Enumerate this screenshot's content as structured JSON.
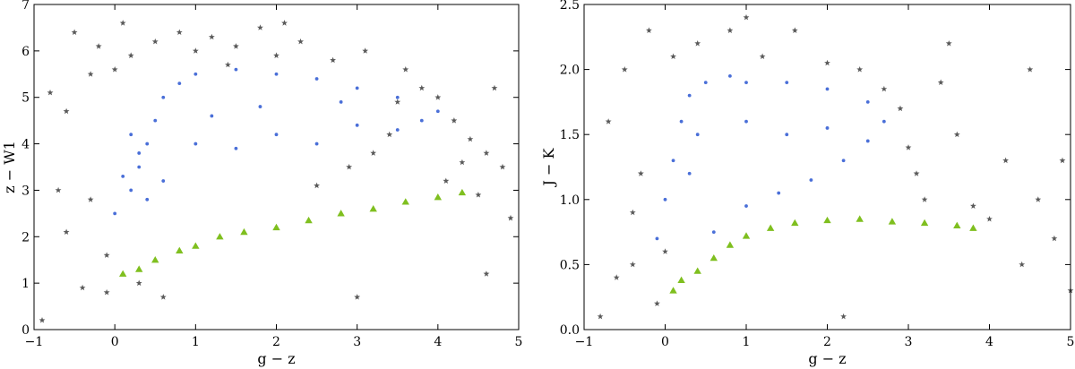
{
  "colors": {
    "galaxy": "#4a6fd8",
    "galaxy_core": "#3a3a9a",
    "star": "#5a5a5a",
    "quasar": "#7fbf1f",
    "quasar_core": "#3f6a1f"
  },
  "chart_data": [
    {
      "type": "scatter",
      "title": "",
      "xlabel": "g − z",
      "ylabel": "z − W1",
      "xlim": [
        -1,
        5
      ],
      "ylim": [
        0,
        7
      ],
      "xticks": [
        -1,
        0,
        1,
        2,
        3,
        4,
        5
      ],
      "yticks": [
        0,
        1,
        2,
        3,
        4,
        5,
        6,
        7
      ],
      "xtick_labels": [
        "−1",
        "0",
        "1",
        "2",
        "3",
        "4",
        "5"
      ],
      "ytick_labels": [
        "0",
        "1",
        "2",
        "3",
        "4",
        "5",
        "6",
        "7"
      ],
      "grid": false,
      "legend": "none",
      "series": [
        {
          "marker": "star",
          "color": "#5a5a5a",
          "points": [
            [
              -0.9,
              0.2
            ],
            [
              -0.7,
              3.0
            ],
            [
              -0.6,
              4.7
            ],
            [
              -0.5,
              6.4
            ],
            [
              -0.4,
              0.9
            ],
            [
              -0.3,
              5.5
            ],
            [
              -0.2,
              6.1
            ],
            [
              -0.1,
              1.6
            ],
            [
              0.1,
              6.6
            ],
            [
              0.2,
              5.9
            ],
            [
              0.3,
              1.0
            ],
            [
              0.5,
              6.2
            ],
            [
              0.6,
              0.7
            ],
            [
              0.8,
              6.4
            ],
            [
              1.0,
              6.0
            ],
            [
              1.2,
              6.3
            ],
            [
              1.5,
              6.1
            ],
            [
              1.8,
              6.5
            ],
            [
              2.0,
              5.9
            ],
            [
              2.3,
              6.2
            ],
            [
              2.5,
              3.1
            ],
            [
              2.7,
              5.8
            ],
            [
              2.9,
              3.5
            ],
            [
              3.1,
              6.0
            ],
            [
              3.2,
              3.8
            ],
            [
              3.4,
              4.2
            ],
            [
              3.6,
              5.6
            ],
            [
              3.8,
              5.2
            ],
            [
              4.0,
              5.0
            ],
            [
              4.1,
              3.2
            ],
            [
              4.2,
              4.5
            ],
            [
              4.3,
              3.6
            ],
            [
              4.4,
              4.1
            ],
            [
              4.5,
              2.9
            ],
            [
              4.6,
              3.8
            ],
            [
              4.7,
              5.2
            ],
            [
              4.8,
              3.5
            ],
            [
              4.9,
              2.4
            ],
            [
              -0.8,
              5.1
            ],
            [
              -0.6,
              2.1
            ],
            [
              -0.3,
              2.8
            ],
            [
              -0.1,
              0.8
            ],
            [
              0.0,
              5.6
            ],
            [
              1.4,
              5.7
            ],
            [
              2.1,
              6.6
            ],
            [
              3.5,
              4.9
            ],
            [
              4.6,
              1.2
            ],
            [
              3.0,
              0.7
            ]
          ]
        },
        {
          "marker": "dot",
          "color": "#4a6fd8",
          "points": [
            [
              0.0,
              2.5
            ],
            [
              0.2,
              3.0
            ],
            [
              0.3,
              3.5
            ],
            [
              0.4,
              4.0
            ],
            [
              0.5,
              4.5
            ],
            [
              0.6,
              5.0
            ],
            [
              0.8,
              5.3
            ],
            [
              1.0,
              5.5
            ],
            [
              1.5,
              5.6
            ],
            [
              2.0,
              5.5
            ],
            [
              2.5,
              5.4
            ],
            [
              3.0,
              5.2
            ],
            [
              3.5,
              5.0
            ],
            [
              4.0,
              4.7
            ],
            [
              0.2,
              4.2
            ],
            [
              0.3,
              3.8
            ],
            [
              1.0,
              4.0
            ],
            [
              1.5,
              3.9
            ],
            [
              2.0,
              4.2
            ],
            [
              2.5,
              4.0
            ],
            [
              3.0,
              4.4
            ],
            [
              3.5,
              4.3
            ],
            [
              0.1,
              3.3
            ],
            [
              0.4,
              2.8
            ],
            [
              0.6,
              3.2
            ],
            [
              1.2,
              4.6
            ],
            [
              1.8,
              4.8
            ],
            [
              2.8,
              4.9
            ],
            [
              3.8,
              4.5
            ]
          ]
        },
        {
          "marker": "triangle",
          "color": "#7fbf1f",
          "points": [
            [
              0.1,
              1.2
            ],
            [
              0.3,
              1.3
            ],
            [
              0.5,
              1.5
            ],
            [
              0.8,
              1.7
            ],
            [
              1.0,
              1.8
            ],
            [
              1.3,
              2.0
            ],
            [
              1.6,
              2.1
            ],
            [
              2.0,
              2.2
            ],
            [
              2.4,
              2.35
            ],
            [
              2.8,
              2.5
            ],
            [
              3.2,
              2.6
            ],
            [
              3.6,
              2.75
            ],
            [
              4.0,
              2.85
            ],
            [
              4.3,
              2.95
            ]
          ]
        }
      ]
    },
    {
      "type": "scatter",
      "title": "",
      "xlabel": "g − z",
      "ylabel": "J − K",
      "xlim": [
        -1,
        5
      ],
      "ylim": [
        0,
        2.5
      ],
      "xticks": [
        -1,
        0,
        1,
        2,
        3,
        4,
        5
      ],
      "yticks": [
        0.0,
        0.5,
        1.0,
        1.5,
        2.0,
        2.5
      ],
      "xtick_labels": [
        "−1",
        "0",
        "1",
        "2",
        "3",
        "4",
        "5"
      ],
      "ytick_labels": [
        "0.0",
        "0.5",
        "1.0",
        "1.5",
        "2.0",
        "2.5"
      ],
      "grid": false,
      "legend": "none",
      "series": [
        {
          "marker": "star",
          "color": "#5a5a5a",
          "points": [
            [
              -0.7,
              1.6
            ],
            [
              -0.6,
              0.4
            ],
            [
              -0.5,
              2.0
            ],
            [
              -0.4,
              0.9
            ],
            [
              -0.3,
              1.2
            ],
            [
              -0.2,
              2.3
            ],
            [
              -0.1,
              0.2
            ],
            [
              0.0,
              0.6
            ],
            [
              0.1,
              2.1
            ],
            [
              0.4,
              2.2
            ],
            [
              0.8,
              2.3
            ],
            [
              1.2,
              2.1
            ],
            [
              1.6,
              2.3
            ],
            [
              2.0,
              2.05
            ],
            [
              2.4,
              2.0
            ],
            [
              2.7,
              1.85
            ],
            [
              2.9,
              1.7
            ],
            [
              3.0,
              1.4
            ],
            [
              3.1,
              1.2
            ],
            [
              3.2,
              1.0
            ],
            [
              3.4,
              1.9
            ],
            [
              3.6,
              1.5
            ],
            [
              3.8,
              0.95
            ],
            [
              4.0,
              0.85
            ],
            [
              4.2,
              1.3
            ],
            [
              4.4,
              0.5
            ],
            [
              4.6,
              1.0
            ],
            [
              4.8,
              0.7
            ],
            [
              4.9,
              1.3
            ],
            [
              5.0,
              0.3
            ],
            [
              -0.8,
              0.1
            ],
            [
              -0.4,
              0.5
            ],
            [
              1.0,
              2.4
            ],
            [
              3.5,
              2.2
            ],
            [
              4.5,
              2.0
            ],
            [
              2.2,
              0.1
            ]
          ]
        },
        {
          "marker": "dot",
          "color": "#4a6fd8",
          "points": [
            [
              -0.1,
              0.7
            ],
            [
              0.0,
              1.0
            ],
            [
              0.1,
              1.3
            ],
            [
              0.2,
              1.6
            ],
            [
              0.3,
              1.8
            ],
            [
              0.5,
              1.9
            ],
            [
              0.8,
              1.95
            ],
            [
              1.0,
              1.9
            ],
            [
              1.5,
              1.9
            ],
            [
              2.0,
              1.85
            ],
            [
              2.5,
              1.75
            ],
            [
              2.7,
              1.6
            ],
            [
              2.5,
              1.45
            ],
            [
              2.2,
              1.3
            ],
            [
              1.8,
              1.15
            ],
            [
              1.4,
              1.05
            ],
            [
              1.0,
              0.95
            ],
            [
              0.6,
              0.75
            ],
            [
              0.3,
              1.2
            ],
            [
              0.4,
              1.5
            ],
            [
              1.0,
              1.6
            ],
            [
              1.5,
              1.5
            ],
            [
              2.0,
              1.55
            ]
          ]
        },
        {
          "marker": "triangle",
          "color": "#7fbf1f",
          "points": [
            [
              0.1,
              0.3
            ],
            [
              0.2,
              0.38
            ],
            [
              0.4,
              0.45
            ],
            [
              0.6,
              0.55
            ],
            [
              0.8,
              0.65
            ],
            [
              1.0,
              0.72
            ],
            [
              1.3,
              0.78
            ],
            [
              1.6,
              0.82
            ],
            [
              2.0,
              0.84
            ],
            [
              2.4,
              0.85
            ],
            [
              2.8,
              0.83
            ],
            [
              3.2,
              0.82
            ],
            [
              3.6,
              0.8
            ],
            [
              3.8,
              0.78
            ]
          ]
        }
      ]
    }
  ]
}
